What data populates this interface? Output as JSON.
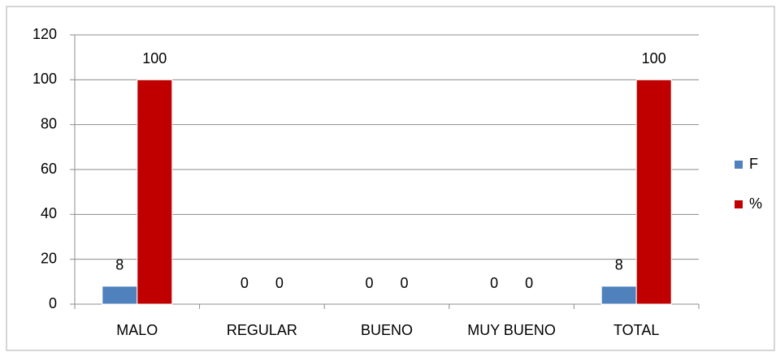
{
  "chart_data": {
    "type": "bar",
    "categories": [
      "MALO",
      "REGULAR",
      "BUENO",
      "MUY BUENO",
      "TOTAL"
    ],
    "series": [
      {
        "name": "F",
        "color": "#4f81bd",
        "values": [
          8,
          0,
          0,
          0,
          8
        ]
      },
      {
        "name": "%",
        "color": "#c00000",
        "values": [
          100,
          0,
          0,
          0,
          100
        ]
      }
    ],
    "ylim": [
      0,
      120
    ],
    "yticks": [
      0,
      20,
      40,
      60,
      80,
      100,
      120
    ],
    "grid": true,
    "legend": "right"
  }
}
